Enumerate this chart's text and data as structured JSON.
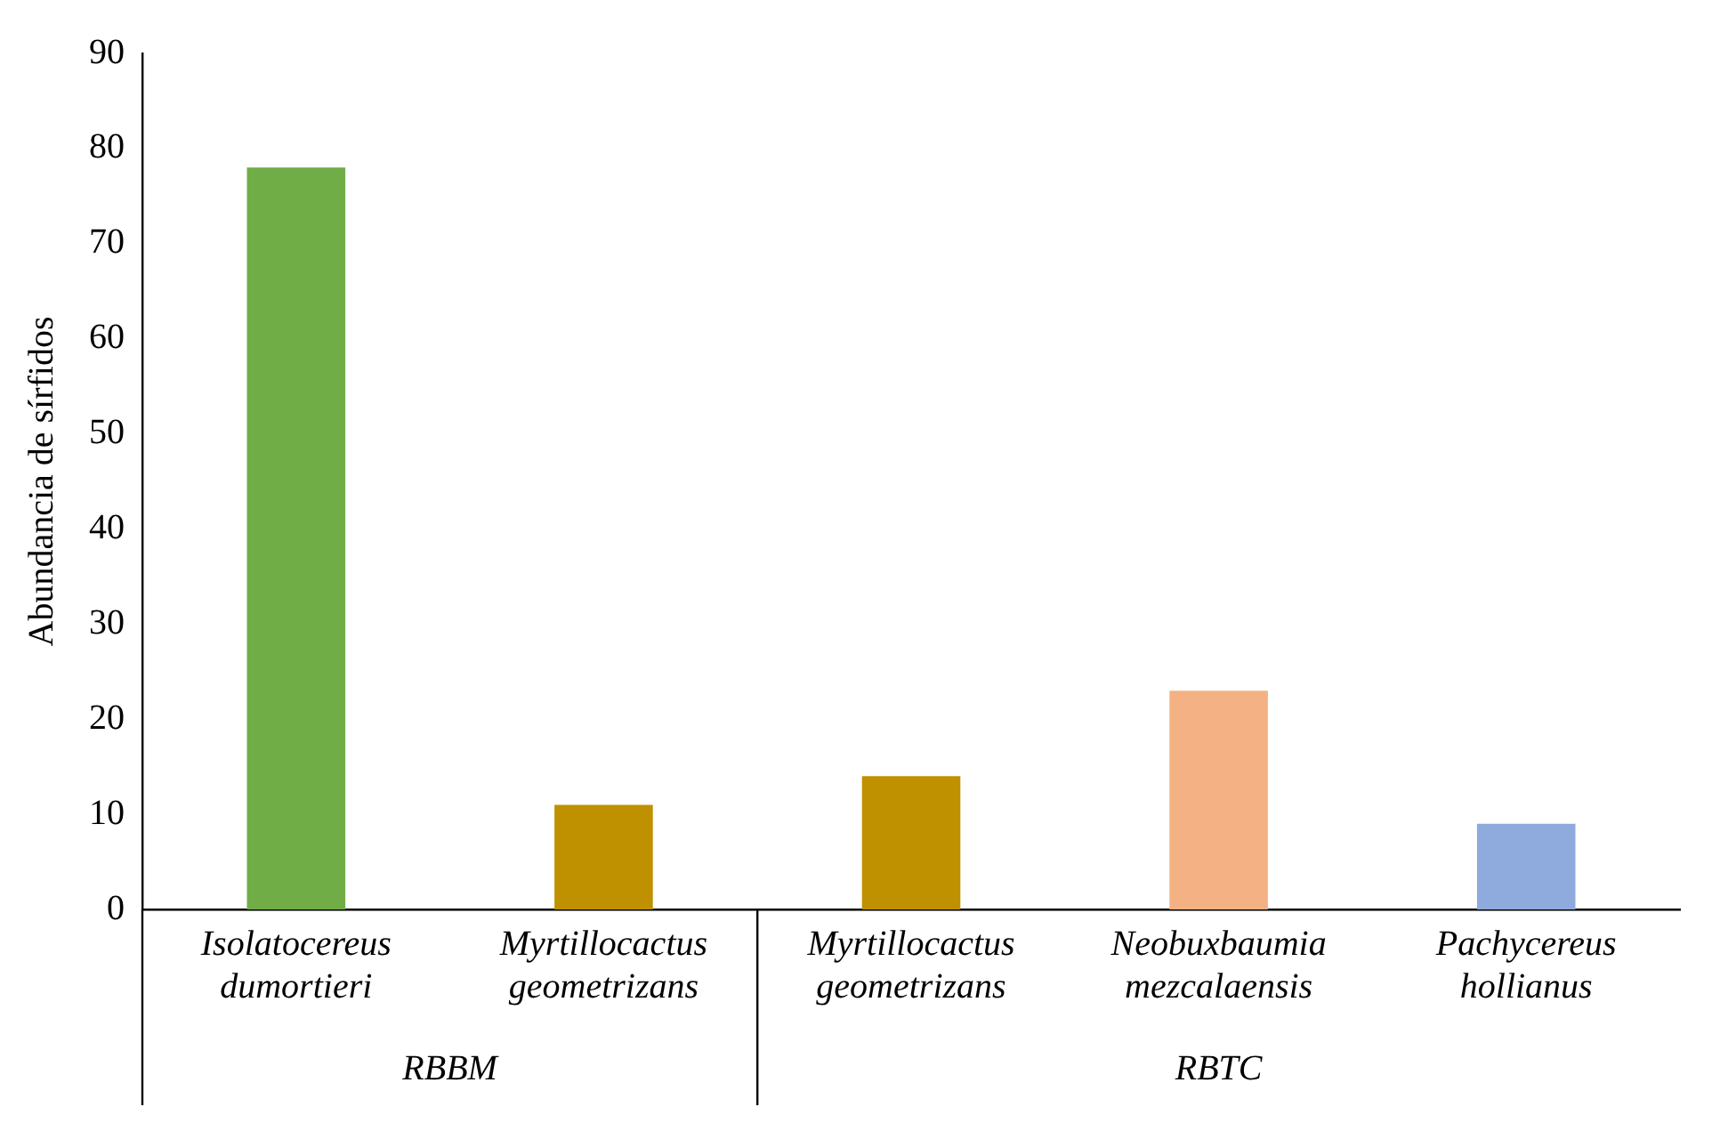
{
  "chart_data": {
    "type": "bar",
    "ylabel": "Abundancia de sírfidos",
    "categories": [
      "Isolatocereus dumortieri",
      "Myrtillocactus geometrizans",
      "Myrtillocactus geometrizans",
      "Neobuxbaumia mezcalaensis",
      "Pachycereus hollianus"
    ],
    "values": [
      78,
      11,
      14,
      23,
      9
    ],
    "colors": [
      "#70ad47",
      "#bf9000",
      "#bf9000",
      "#f4b183",
      "#8faadc"
    ],
    "ylim": [
      0,
      90
    ],
    "yticks": [
      0,
      10,
      20,
      30,
      40,
      50,
      60,
      70,
      80,
      90
    ],
    "grid": false,
    "legend": false,
    "annotations": [
      "RBBM",
      "RBTC"
    ]
  }
}
